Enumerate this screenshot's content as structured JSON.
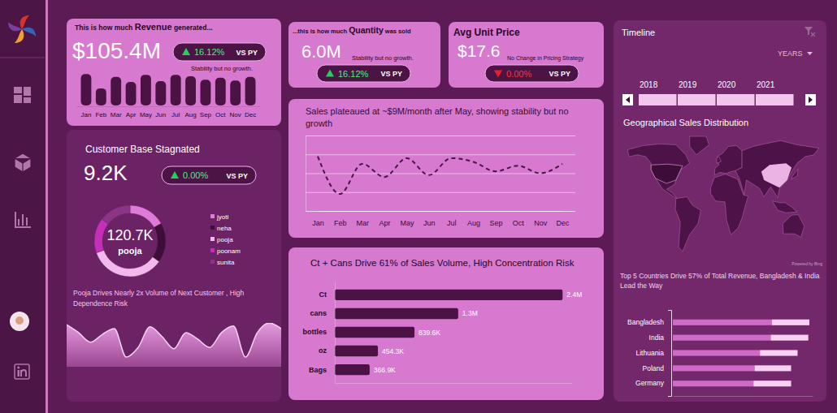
{
  "kpis": [
    {
      "title_pre": "This is how much ",
      "title_bold": "Revenue",
      "title_post": " generated...",
      "value": "$105.4M",
      "change": "16.12%",
      "direction": "up",
      "vs": "VS PY",
      "note": "Stability but no growth."
    },
    {
      "title_pre": "...this is how much ",
      "title_bold": "Quantity",
      "title_post": " was sold",
      "value": "6.0M",
      "change": "16.12%",
      "direction": "up",
      "vs": "VS PY",
      "note": "Stability but no growth."
    },
    {
      "title_bold": "Avg Unit Price",
      "value": "$17.6",
      "change": "0.00%",
      "direction": "down",
      "vs": "VS PY",
      "note": "No Change in Pricing Strategy"
    },
    {
      "title": "Customer Base Stagnated",
      "value": "9.2K",
      "change": "0.00%",
      "direction": "up",
      "vs": "VS PY"
    }
  ],
  "chart_data": [
    {
      "type": "bar",
      "categories": [
        "Jan",
        "Feb",
        "Mar",
        "Apr",
        "May",
        "Jun",
        "Jul",
        "Aug",
        "Sep",
        "Oct",
        "Nov",
        "Dec"
      ],
      "values": [
        9.4,
        7.4,
        9,
        8.3,
        9.3,
        8.4,
        9.3,
        9.1,
        8.6,
        8.9,
        8.5,
        9
      ],
      "color": "#4a1343",
      "ylim": [
        5,
        10
      ],
      "tick_labels": "x"
    },
    {
      "type": "line",
      "title": "Sales plateaued at ~$9M/month after May, showing stability but no growth",
      "categories": [
        "Jan",
        "Feb",
        "Mar",
        "Apr",
        "May",
        "Jun",
        "Jul",
        "Aug",
        "Sep",
        "Oct",
        "Nov",
        "Dec"
      ],
      "values": [
        9.4,
        7.4,
        9,
        8.3,
        9.3,
        8.4,
        9.3,
        9.1,
        8.6,
        8.9,
        8.5,
        9
      ],
      "color": "#4a1343",
      "line_style": "dashed",
      "ylim": [
        6.5,
        10.5
      ],
      "yticks": [
        6.5,
        7.5,
        8.5,
        9.5,
        10.5
      ],
      "grid": true,
      "tick_labels": "x"
    },
    {
      "type": "bar",
      "orientation": "horizontal",
      "title": "Ct + Cans Drive 61% of Sales Volume, High Concentration Risk",
      "categories": [
        "Ct",
        "cans",
        "bottles",
        "oz",
        "Bags"
      ],
      "values": [
        2400000,
        1300000,
        839600,
        454300,
        366900
      ],
      "value_labels": [
        "2.4M",
        "1.3M",
        "839.6K",
        "454.3K",
        "366.9K"
      ],
      "data_labels": true,
      "color": "#4a1343",
      "xlim": [
        0,
        2500000
      ],
      "tick_labels": "y"
    },
    {
      "type": "pie",
      "title": "Pooja Drives Nearly 2x Volume of Next Customer , High Dependence Risk",
      "categories": [
        "jyoti",
        "neha",
        "pooja",
        "poonam",
        "sunita"
      ],
      "values": [
        58.4,
        62.1,
        120.7,
        55.3,
        49.8
      ],
      "colors": [
        "#e07ad8",
        "#3d0f38",
        "#f2b9ed",
        "#c42fb8",
        "#8b3584"
      ],
      "annotations": [
        "120.7K",
        "pooja"
      ],
      "legend": "right"
    },
    {
      "type": "area",
      "x": [
        1,
        2,
        3,
        4,
        5,
        6,
        7,
        8,
        9,
        10,
        11,
        12,
        13,
        14,
        15,
        16,
        17,
        18,
        19
      ],
      "values": [
        96,
        78,
        56,
        74,
        87,
        22,
        44,
        91,
        69,
        41,
        78,
        63,
        44,
        78,
        93,
        22,
        78,
        100,
        87
      ],
      "color": "#f6d3f2",
      "xlim": [
        1,
        19
      ],
      "ylim": [
        0,
        100
      ],
      "tick_labels": false
    },
    {
      "type": "bar",
      "orientation": "horizontal",
      "stacked": true,
      "title": "Top 5 Countries Drive 57% of Total Revenue, Bangladesh & India Lead the Way",
      "categories": [
        "Bangladesh",
        "India",
        "Lithuania",
        "Poland",
        "Germany"
      ],
      "series": [
        {
          "color": "#cf6ac6",
          "values": [
            9.2,
            9.1,
            8.1,
            7.6,
            7.5
          ]
        },
        {
          "color": "#f7d0f2",
          "values": [
            3.5,
            3.5,
            3.5,
            3.4,
            3.5
          ]
        }
      ],
      "xlim": [
        0,
        13
      ],
      "tick_labels": "y"
    }
  ],
  "timeline": {
    "title": "Timeline",
    "unit": "YEARS",
    "years": [
      "2018",
      "2019",
      "2020",
      "2021"
    ]
  },
  "map": {
    "title": "Geographical Sales Distribution",
    "credit": "Powered by Bing"
  }
}
